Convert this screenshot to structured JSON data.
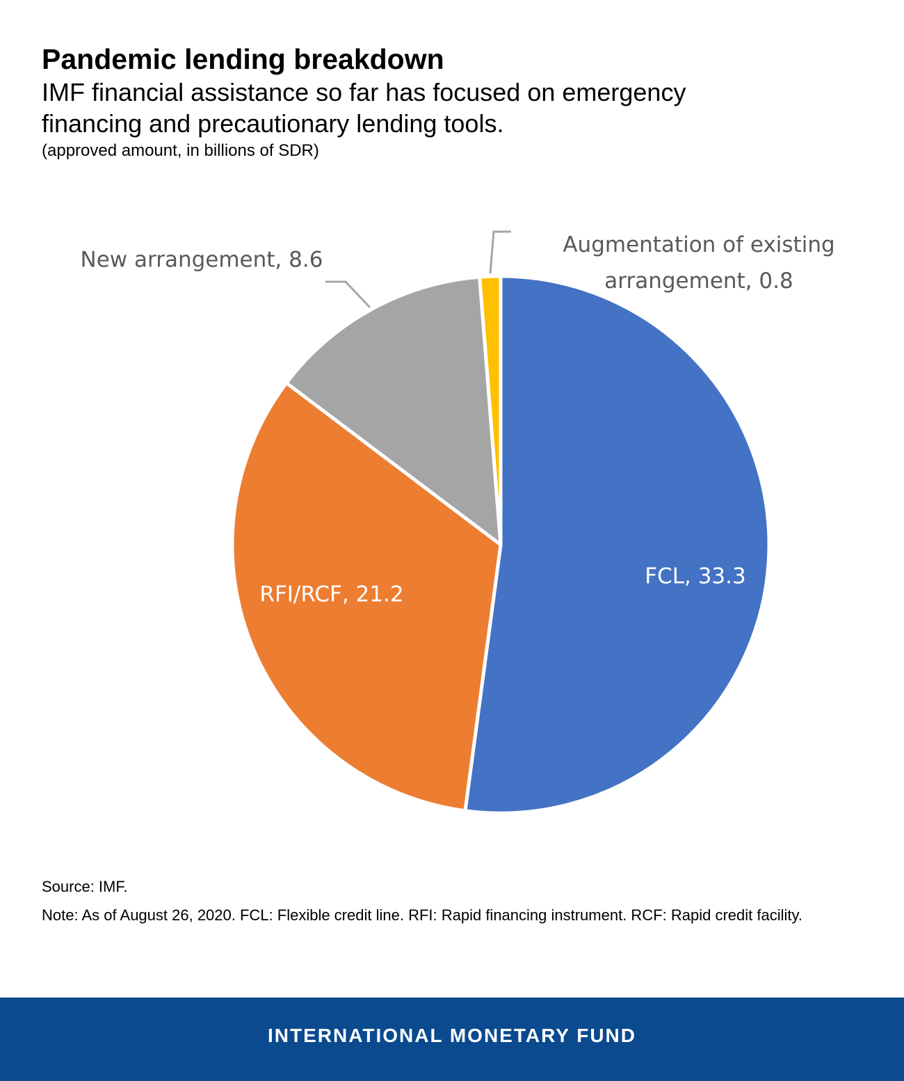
{
  "chart_data": {
    "type": "pie",
    "title": "Pandemic lending breakdown",
    "subtitle": "IMF financial assistance so far has focused on emergency financing and precautionary lending tools.",
    "unit_note": "(approved amount, in billions of SDR)",
    "values": [
      33.3,
      21.2,
      8.6,
      0.8
    ],
    "value_labels": [
      "FCL, 33.3",
      "RFI/RCF, 21.2",
      "New arrangement, 8.6",
      "Augmentation of existing arrangement, 0.8"
    ],
    "colors": [
      "#4472c4",
      "#ed7d31",
      "#a5a5a5",
      "#ffc000"
    ],
    "source": "Source: IMF.",
    "note": "Note: As of August 26, 2020.  FCL: Flexible credit line. RFI: Rapid financing instrument. RCF: Rapid credit facility."
  },
  "footer": {
    "text": "INTERNATIONAL MONETARY FUND"
  }
}
